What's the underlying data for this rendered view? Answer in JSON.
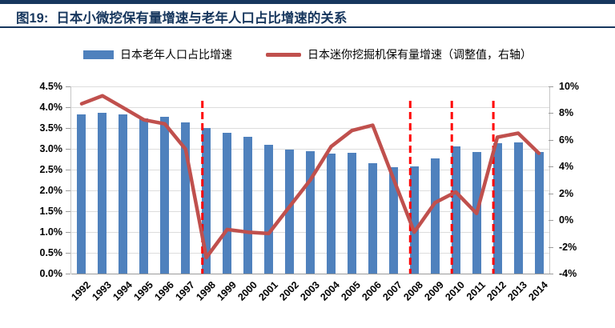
{
  "header": {
    "figure_label": "图19:",
    "title": "日本小微挖保有量增速与老年人口占比增速的关系",
    "accent_color": "#17375E"
  },
  "legend": {
    "items": [
      {
        "swatch": "bar-swatch",
        "label": "日本老年人口占比增速",
        "color": "#4F81BD"
      },
      {
        "swatch": "line-swatch",
        "label": "日本迷你挖掘机保有量增速（调整值，右轴）",
        "color": "#C0504D"
      }
    ]
  },
  "chart_data": {
    "type": "bar+line",
    "categories": [
      "1992",
      "1993",
      "1994",
      "1995",
      "1996",
      "1997",
      "1998",
      "1999",
      "2000",
      "2001",
      "2002",
      "2003",
      "2004",
      "2005",
      "2006",
      "2007",
      "2008",
      "2009",
      "2010",
      "2011",
      "2012",
      "2013",
      "2014"
    ],
    "series": [
      {
        "name": "日本老年人口占比增速",
        "type": "bar",
        "axis": "left",
        "color": "#4F81BD",
        "unit": "%",
        "values": [
          3.83,
          3.87,
          3.83,
          3.74,
          3.76,
          3.63,
          3.5,
          3.38,
          3.28,
          3.1,
          2.98,
          2.94,
          2.89,
          2.91,
          2.65,
          2.56,
          2.58,
          2.77,
          3.05,
          2.93,
          3.14,
          3.16,
          2.92
        ]
      },
      {
        "name": "日本迷你挖掘机保有量增速（调整值，右轴）",
        "type": "line",
        "axis": "right",
        "color": "#C0504D",
        "unit": "%",
        "values": [
          8.7,
          9.3,
          8.4,
          7.5,
          7.2,
          5.3,
          -2.8,
          -0.7,
          -0.9,
          -1.0,
          1.0,
          3.0,
          5.5,
          6.7,
          7.1,
          3.1,
          -0.9,
          1.3,
          2.1,
          0.5,
          6.2,
          6.5,
          5.0
        ]
      }
    ],
    "left_axis": {
      "min": 0,
      "max": 4.5,
      "tick_labels": [
        "4.5%",
        "4.0%",
        "3.5%",
        "3.0%",
        "2.5%",
        "2.0%",
        "1.5%",
        "1.0%",
        "0.5%",
        "0.0%"
      ]
    },
    "right_axis": {
      "min": -4,
      "max": 10,
      "tick_labels": [
        "10%",
        "8%",
        "6%",
        "4%",
        "2%",
        "0%",
        "-2%",
        "-4%"
      ]
    },
    "annotations": {
      "dashed_vline_years": [
        "1998",
        "2008",
        "2010",
        "2012"
      ],
      "line_color": "#FF0000"
    },
    "grid": true,
    "legend_position": "top"
  }
}
